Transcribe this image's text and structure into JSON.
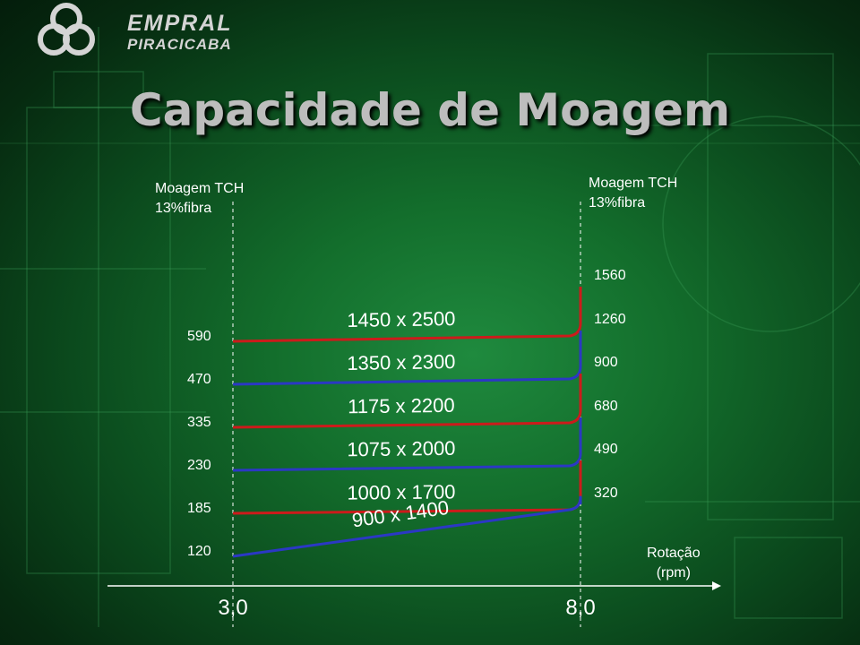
{
  "logo": {
    "line1": "EMPRAL",
    "line2": "PIRACICABA"
  },
  "title": "Capacidade de Moagem",
  "chart_data": {
    "type": "line",
    "title": "Capacidade de Moagem",
    "left_axis_title": [
      "Moagem TCH",
      "13%fibra"
    ],
    "right_axis_title": [
      "Moagem TCH",
      "13%fibra"
    ],
    "x_axis_title": [
      "Rotação",
      "(rpm)"
    ],
    "x": [
      3.0,
      8.0
    ],
    "x_tick_labels": [
      "3,0",
      "8,0"
    ],
    "left_tick_labels": [
      "590",
      "470",
      "335",
      "230",
      "185",
      "120"
    ],
    "right_tick_labels": [
      "1560",
      "1260",
      "900",
      "680",
      "490",
      "320"
    ],
    "series": [
      {
        "name": "1450 x 2500",
        "values": [
          590,
          1560
        ],
        "color": "#cc1b1b"
      },
      {
        "name": "1350 x 2300",
        "values": [
          470,
          1260
        ],
        "color": "#2b38c4"
      },
      {
        "name": "1175 x 2200",
        "values": [
          335,
          900
        ],
        "color": "#cc1b1b"
      },
      {
        "name": "1075 x 2000",
        "values": [
          230,
          680
        ],
        "color": "#2b38c4"
      },
      {
        "name": "1000 x 1700",
        "values": [
          185,
          490
        ],
        "color": "#cc1b1b"
      },
      {
        "name": "900 x 1400",
        "values": [
          120,
          320
        ],
        "color": "#2b38c4"
      }
    ],
    "grid": false
  }
}
